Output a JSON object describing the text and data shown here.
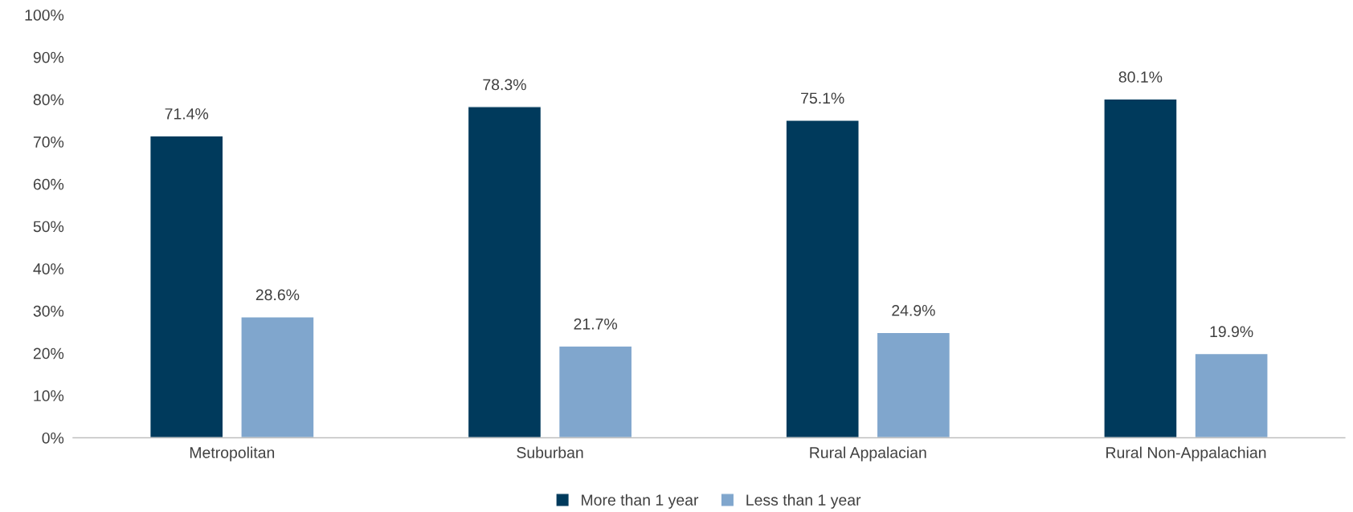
{
  "chart_data": {
    "type": "bar",
    "categories": [
      "Metropolitan",
      "Suburban",
      "Rural Appalacian",
      "Rural Non-Appalachian"
    ],
    "series": [
      {
        "name": "More than 1 year",
        "color": "#003a5c",
        "values": [
          71.4,
          78.3,
          75.1,
          80.1
        ],
        "value_labels": [
          "71.4%",
          "78.3%",
          "75.1%",
          "80.1%"
        ]
      },
      {
        "name": "Less than 1 year",
        "color": "#80a6cd",
        "values": [
          28.6,
          21.7,
          24.9,
          19.9
        ],
        "value_labels": [
          "28.6%",
          "21.7%",
          "24.9%",
          "19.9%"
        ]
      }
    ],
    "ylim": [
      0,
      100
    ],
    "yticks": [
      {
        "value": 0,
        "label": "0%"
      },
      {
        "value": 10,
        "label": "10%"
      },
      {
        "value": 20,
        "label": "20%"
      },
      {
        "value": 30,
        "label": "30%"
      },
      {
        "value": 40,
        "label": "40%"
      },
      {
        "value": 50,
        "label": "50%"
      },
      {
        "value": 60,
        "label": "60%"
      },
      {
        "value": 70,
        "label": "70%"
      },
      {
        "value": 80,
        "label": "80%"
      },
      {
        "value": 90,
        "label": "90%"
      },
      {
        "value": 100,
        "label": "100%"
      }
    ],
    "grid": false,
    "legend": "bottom"
  }
}
